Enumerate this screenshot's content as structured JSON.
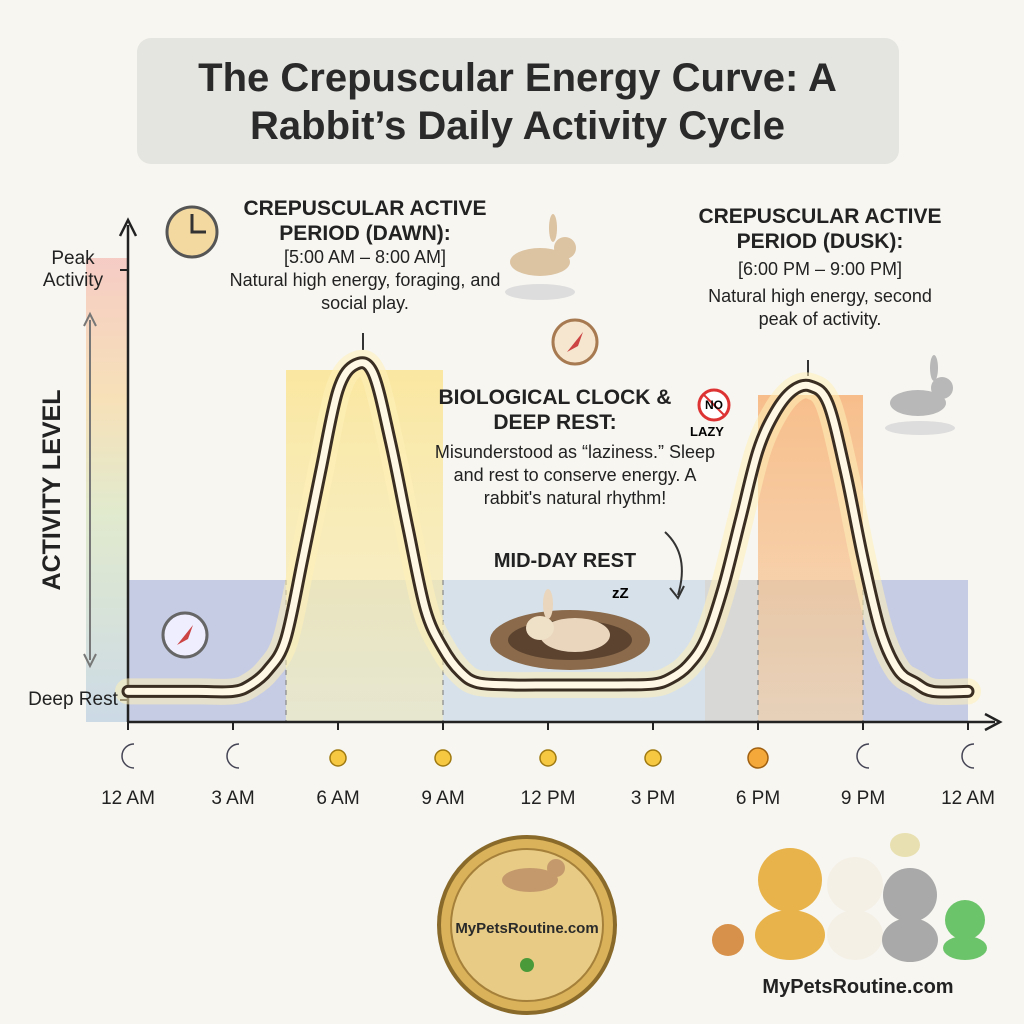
{
  "chart_data": {
    "type": "line",
    "title": "The Crepuscular Energy Curve: A Rabbit’s Daily Activity Cycle",
    "y_label": "ACTIVITY LEVEL",
    "x": [
      0,
      1,
      2,
      3,
      3.5,
      4,
      4.5,
      5,
      5.5,
      6,
      6.5,
      7,
      7.5,
      8,
      8.5,
      9,
      9.5,
      10,
      11,
      12,
      13,
      14,
      15,
      15.5,
      16,
      16.5,
      17,
      17.5,
      18,
      18.5,
      19,
      19.5,
      20,
      20.5,
      21,
      21.5,
      22,
      22.5,
      23,
      24
    ],
    "values": [
      2,
      2,
      2,
      2,
      3.5,
      7,
      14,
      33,
      53,
      72,
      78,
      76,
      60,
      40,
      21,
      12,
      6.5,
      4,
      3.5,
      3.5,
      3.5,
      3.5,
      3.7,
      5,
      8,
      14,
      26,
      42,
      58,
      67,
      72,
      73,
      69,
      53,
      33,
      16,
      7,
      4,
      2,
      2
    ],
    "color": "#fff8e4",
    "xlim": [
      0,
      24
    ],
    "xticks": [
      {
        "value": 0,
        "label": "12 AM"
      },
      {
        "value": 3,
        "label": "3 AM"
      },
      {
        "value": 6,
        "label": "6 AM"
      },
      {
        "value": 9,
        "label": "9 AM"
      },
      {
        "value": 12,
        "label": "12 PM"
      },
      {
        "value": 15,
        "label": "3 PM"
      },
      {
        "value": 18,
        "label": "6 PM"
      },
      {
        "value": 21,
        "label": "9 PM"
      },
      {
        "value": 24,
        "label": "12 AM"
      }
    ],
    "ylim": [
      0,
      100
    ],
    "yticks": [
      {
        "value": 0,
        "label": "Deep Rest"
      },
      {
        "value": 100,
        "label": "Peak Activity"
      }
    ],
    "annotations": [
      {
        "title": "CREPUSCULAR ACTIVE PERIOD (DAWN):",
        "range": "[5:00 AM – 8:00 AM]",
        "text": "Natural high energy, foraging, and social play."
      },
      {
        "title": "CREPUSCULAR ACTIVE PERIOD (DUSK):",
        "range": "[6:00 PM – 9:00 PM]",
        "text": "Natural high energy, second peak of activity."
      },
      {
        "title": "BIOLOGICAL CLOCK & DEEP REST:",
        "text": "Misunderstood as “laziness.” Sleep and rest to conserve energy. A rabbit's natural rhythm!"
      },
      {
        "title": "MID-DAY REST"
      }
    ],
    "badge_top": "NO",
    "badge_bottom": "LAZY",
    "snore": "zZ",
    "brand": "MyPetsRoutine.com"
  }
}
